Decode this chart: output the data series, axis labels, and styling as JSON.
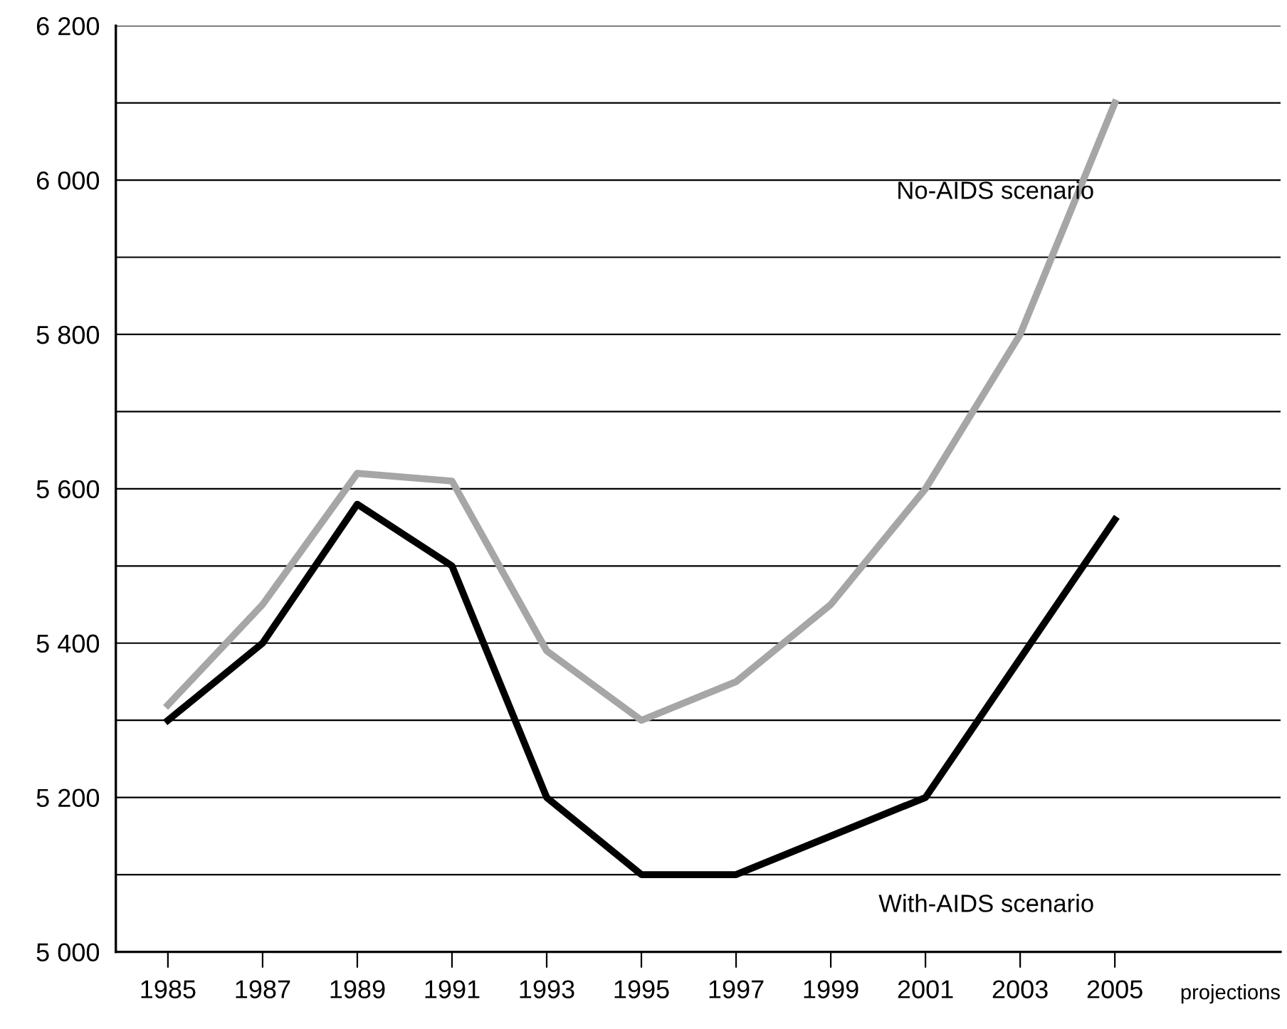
{
  "chart_data": {
    "type": "line",
    "x": [
      1985,
      1987,
      1989,
      1991,
      1993,
      1995,
      1997,
      1999,
      2001,
      2003,
      2005
    ],
    "series": [
      {
        "name": "No-AIDS scenario",
        "color": "#a6a6a6",
        "values": [
          5320,
          5450,
          5620,
          5610,
          5390,
          5300,
          5350,
          5450,
          5600,
          5800,
          6100
        ]
      },
      {
        "name": "With-AIDS scenario",
        "color": "#000000",
        "values": [
          5300,
          5400,
          5580,
          5500,
          5200,
          5100,
          5100,
          5150,
          5200,
          5380,
          5560
        ]
      }
    ],
    "xlim": [
      1983.9,
      2008.5
    ],
    "xticks": [
      1985,
      1987,
      1989,
      1991,
      1993,
      1995,
      1997,
      1999,
      2001,
      2003,
      2005
    ],
    "ylim": [
      5000,
      6200
    ],
    "yticks": [
      {
        "value": 5000,
        "label": "5 000"
      },
      {
        "value": 5100,
        "label": null
      },
      {
        "value": 5200,
        "label": "5 200"
      },
      {
        "value": 5300,
        "label": null
      },
      {
        "value": 5400,
        "label": "5 400"
      },
      {
        "value": 5500,
        "label": null
      },
      {
        "value": 5600,
        "label": "5 600"
      },
      {
        "value": 5700,
        "label": null
      },
      {
        "value": 5800,
        "label": "5 800"
      },
      {
        "value": 5900,
        "label": null
      },
      {
        "value": 6000,
        "label": "6 000"
      },
      {
        "value": 6100,
        "label": null
      },
      {
        "value": 6200,
        "label": "6 200"
      }
    ],
    "grid": "y",
    "legend": false,
    "marker": "none",
    "line_style": "solid",
    "annotations": [
      "projections"
    ]
  }
}
